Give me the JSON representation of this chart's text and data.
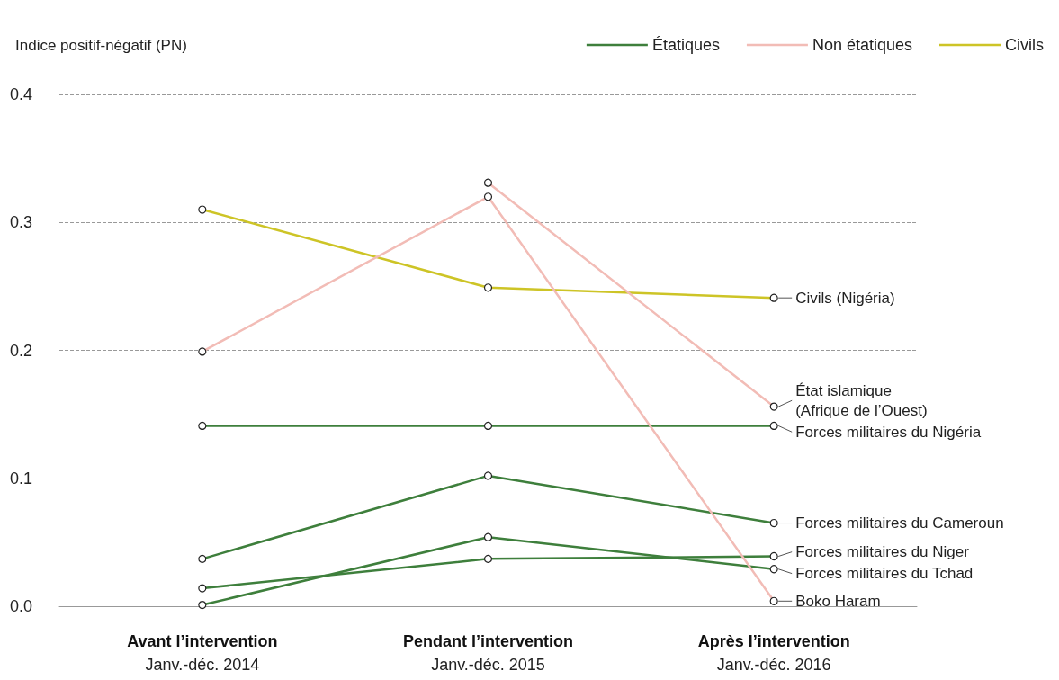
{
  "chart_data": {
    "type": "line",
    "ylabel": "Indice positif-négatif (PN)",
    "categories": [
      "Avant l’intervention\nJanv.-déc. 2014",
      "Pendant l’intervention\nJanv.-déc. 2015",
      "Après l’intervention\nJanv.-déc. 2016"
    ],
    "ylim": [
      0,
      0.4
    ],
    "yticks": [
      {
        "value": 0,
        "label": "0.0"
      },
      {
        "value": 0.1,
        "label": "0.1"
      },
      {
        "value": 0.2,
        "label": "0.2"
      },
      {
        "value": 0.3,
        "label": "0.3"
      },
      {
        "value": 0.4,
        "label": "0.4"
      }
    ],
    "grid": "y",
    "legend": "top right",
    "marker": "circle",
    "line_style": "solid",
    "series": [
      {
        "name": "Étatiques",
        "color": "#3e7f3c",
        "values": [
          null,
          null,
          null
        ]
      },
      {
        "name": "Non étatiques",
        "color": "#f2bcb6",
        "values": [
          null,
          null,
          null
        ]
      },
      {
        "name": "Civils",
        "color": "#cdc426",
        "values": [
          null,
          null,
          null
        ]
      },
      {
        "name": "Civils (Nigéria)",
        "color": "#cdc426",
        "values": [
          0.31,
          0.249,
          0.241
        ]
      },
      {
        "name": "État islamique\n(Afrique de l’Ouest)",
        "color": "#f2bcb6",
        "values": [
          null,
          0.331,
          0.156
        ]
      },
      {
        "name": "Forces militaires du Nigéria",
        "color": "#3e7f3c",
        "values": [
          0.141,
          0.141,
          0.141
        ]
      },
      {
        "name": "Forces militaires du Cameroun",
        "color": "#3e7f3c",
        "values": [
          0.037,
          0.102,
          0.065
        ]
      },
      {
        "name": "Forces militaires du Niger",
        "color": "#3e7f3c",
        "values": [
          0.014,
          0.037,
          0.039
        ]
      },
      {
        "name": "Forces militaires du Tchad",
        "color": "#3e7f3c",
        "values": [
          0.001,
          0.054,
          0.029
        ]
      },
      {
        "name": "Boko Haram",
        "color": "#f2bcb6",
        "values": [
          0.199,
          0.32,
          0.004
        ]
      }
    ]
  }
}
